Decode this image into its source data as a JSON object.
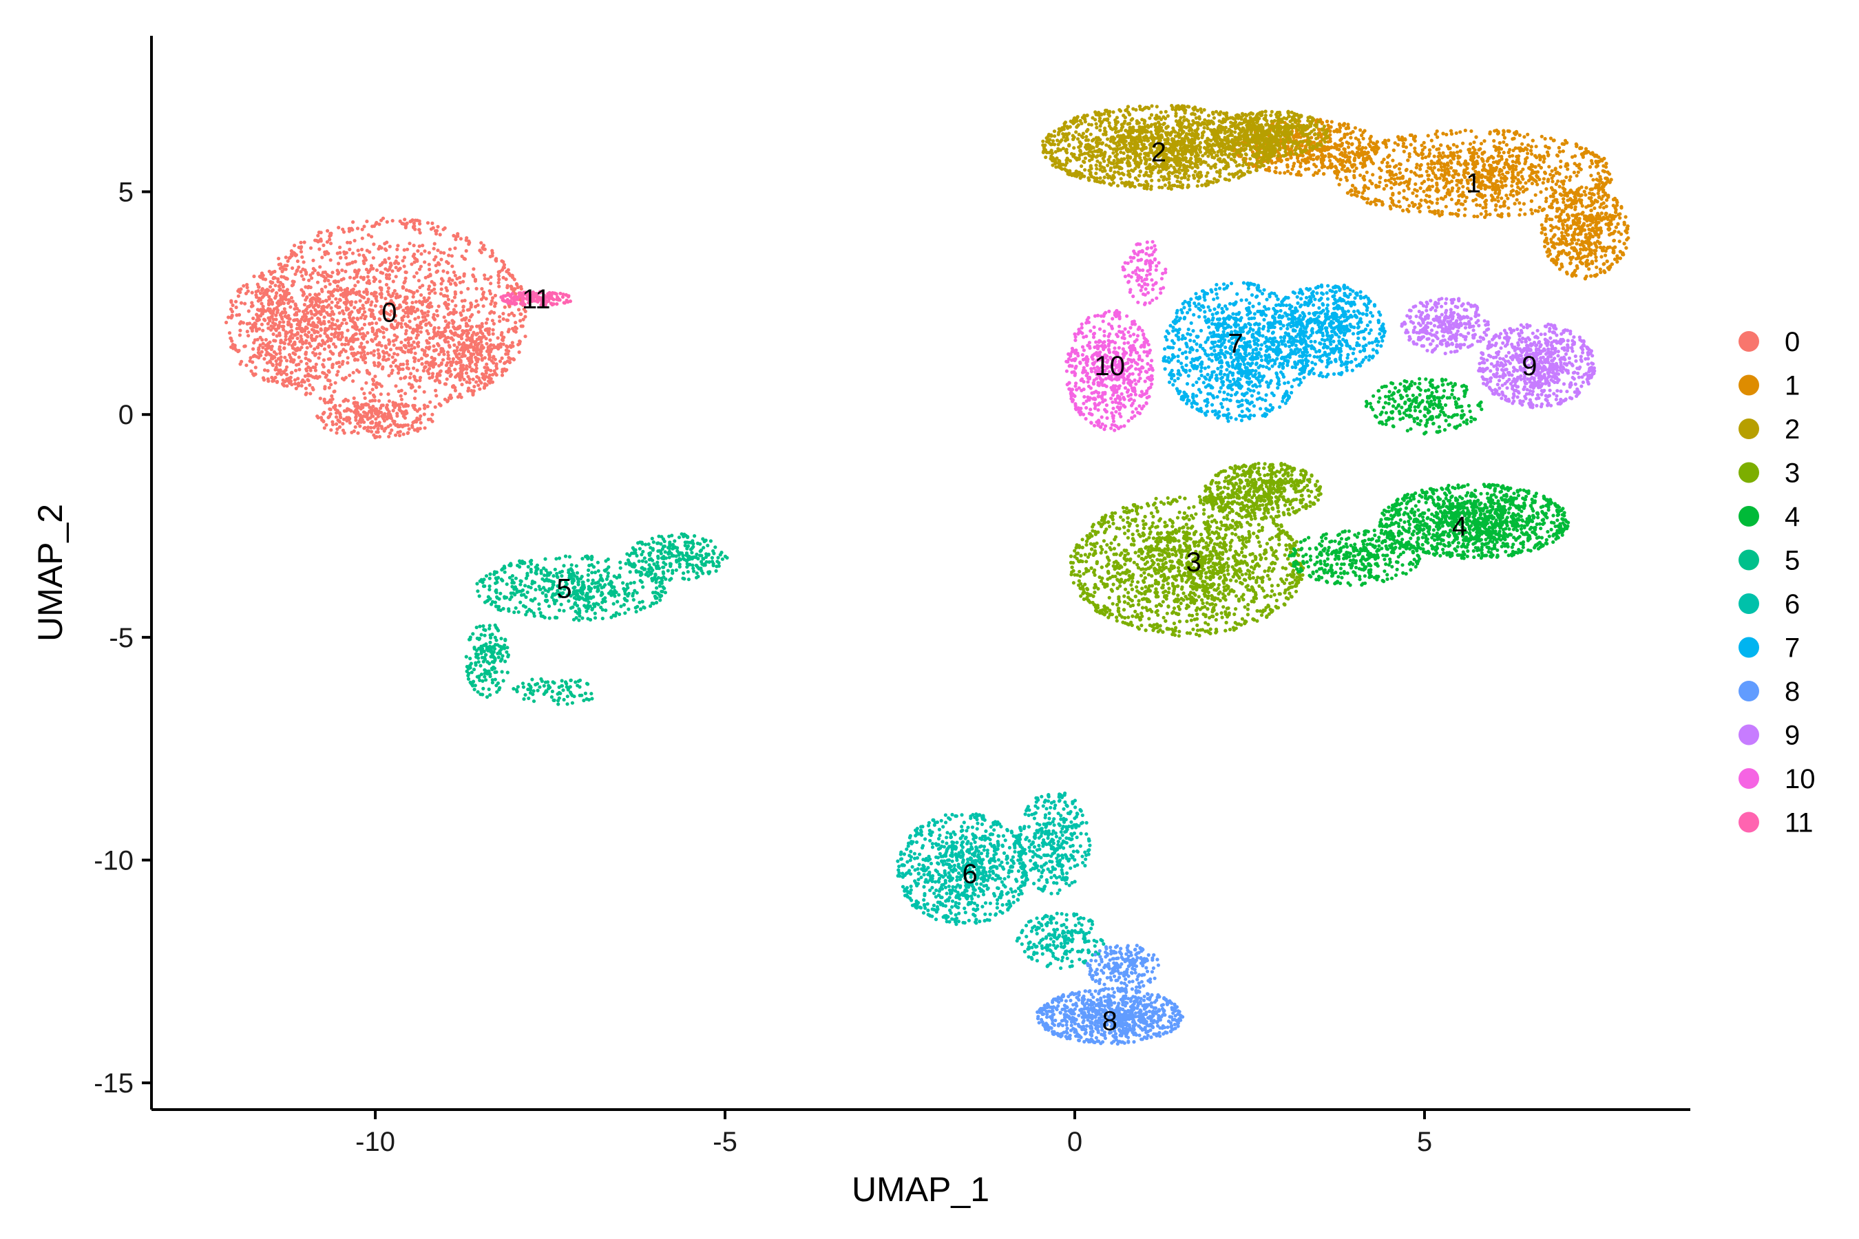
{
  "chart_data": {
    "type": "scatter",
    "xlabel": "UMAP_1",
    "ylabel": "UMAP_2",
    "xlim": [
      -13.2,
      8.8
    ],
    "ylim": [
      -15.6,
      8.5
    ],
    "xticks": [
      -10,
      -5,
      0,
      5
    ],
    "yticks": [
      -15,
      -10,
      -5,
      0,
      5
    ],
    "grid": false,
    "legend_position": "right",
    "clusters": [
      {
        "name": "0",
        "color": "#F8766D",
        "label_x": -9.8,
        "label_y": 2.3,
        "n": 2600,
        "regions": [
          {
            "x": -9.8,
            "y": 2.2,
            "rx": 1.9,
            "ry": 2.1,
            "w": 0.6
          },
          {
            "x": -11.2,
            "y": 2.0,
            "rx": 0.9,
            "ry": 1.3,
            "w": 0.2
          },
          {
            "x": -8.7,
            "y": 1.3,
            "rx": 0.6,
            "ry": 0.7,
            "w": 0.1
          },
          {
            "x": -10.0,
            "y": -0.1,
            "rx": 0.8,
            "ry": 0.4,
            "w": 0.1
          }
        ]
      },
      {
        "name": "1",
        "color": "#DE8C00",
        "label_x": 5.7,
        "label_y": 5.2,
        "n": 2600,
        "regions": [
          {
            "x": 5.7,
            "y": 5.4,
            "rx": 1.9,
            "ry": 0.95,
            "w": 0.5
          },
          {
            "x": 3.3,
            "y": 6.0,
            "rx": 1.0,
            "ry": 0.6,
            "w": 0.25
          },
          {
            "x": 7.3,
            "y": 4.1,
            "rx": 0.6,
            "ry": 1.0,
            "w": 0.25
          }
        ]
      },
      {
        "name": "2",
        "color": "#B79F00",
        "label_x": 1.2,
        "label_y": 5.9,
        "n": 2300,
        "regions": [
          {
            "x": 1.2,
            "y": 6.0,
            "rx": 1.6,
            "ry": 0.9,
            "w": 0.75
          },
          {
            "x": 2.8,
            "y": 6.3,
            "rx": 0.8,
            "ry": 0.5,
            "w": 0.25
          }
        ]
      },
      {
        "name": "3",
        "color": "#7CAE00",
        "label_x": 1.7,
        "label_y": -3.3,
        "n": 2600,
        "regions": [
          {
            "x": 1.6,
            "y": -3.4,
            "rx": 1.6,
            "ry": 1.5,
            "w": 0.75
          },
          {
            "x": 2.7,
            "y": -1.7,
            "rx": 0.8,
            "ry": 0.6,
            "w": 0.25
          }
        ]
      },
      {
        "name": "4",
        "color": "#00BA38",
        "label_x": 5.5,
        "label_y": -2.5,
        "n": 1800,
        "regions": [
          {
            "x": 5.7,
            "y": -2.4,
            "rx": 1.3,
            "ry": 0.8,
            "w": 0.65
          },
          {
            "x": 4.0,
            "y": -3.2,
            "rx": 0.9,
            "ry": 0.6,
            "w": 0.2
          },
          {
            "x": 5.0,
            "y": 0.2,
            "rx": 0.8,
            "ry": 0.6,
            "w": 0.15
          }
        ]
      },
      {
        "name": "5",
        "color": "#00C08B",
        "label_x": -7.3,
        "label_y": -3.9,
        "n": 1000,
        "regions": [
          {
            "x": -7.2,
            "y": -3.9,
            "rx": 1.3,
            "ry": 0.7,
            "w": 0.5
          },
          {
            "x": -5.7,
            "y": -3.2,
            "rx": 0.7,
            "ry": 0.5,
            "w": 0.25
          },
          {
            "x": -8.4,
            "y": -5.5,
            "rx": 0.3,
            "ry": 0.8,
            "w": 0.15
          },
          {
            "x": -7.4,
            "y": -6.2,
            "rx": 0.6,
            "ry": 0.3,
            "w": 0.1
          }
        ]
      },
      {
        "name": "6",
        "color": "#00C1AA",
        "label_x": -1.5,
        "label_y": -10.3,
        "n": 1300,
        "regions": [
          {
            "x": -1.6,
            "y": -10.2,
            "rx": 0.9,
            "ry": 1.2,
            "w": 0.6
          },
          {
            "x": -0.3,
            "y": -9.6,
            "rx": 0.5,
            "ry": 1.1,
            "w": 0.25
          },
          {
            "x": -0.2,
            "y": -11.8,
            "rx": 0.6,
            "ry": 0.6,
            "w": 0.15
          }
        ]
      },
      {
        "name": "7",
        "color": "#00B4F0",
        "label_x": 2.3,
        "label_y": 1.6,
        "n": 1600,
        "regions": [
          {
            "x": 2.3,
            "y": 1.4,
            "rx": 1.0,
            "ry": 1.5,
            "w": 0.6
          },
          {
            "x": 3.6,
            "y": 1.9,
            "rx": 0.8,
            "ry": 1.0,
            "w": 0.4
          }
        ]
      },
      {
        "name": "8",
        "color": "#619CFF",
        "label_x": 0.5,
        "label_y": -13.6,
        "n": 1000,
        "regions": [
          {
            "x": 0.5,
            "y": -13.5,
            "rx": 1.0,
            "ry": 0.6,
            "w": 0.8
          },
          {
            "x": 0.7,
            "y": -12.4,
            "rx": 0.5,
            "ry": 0.5,
            "w": 0.2
          }
        ]
      },
      {
        "name": "9",
        "color": "#C77CFF",
        "label_x": 6.5,
        "label_y": 1.1,
        "n": 1000,
        "regions": [
          {
            "x": 6.6,
            "y": 1.1,
            "rx": 0.8,
            "ry": 0.9,
            "w": 0.7
          },
          {
            "x": 5.3,
            "y": 2.0,
            "rx": 0.6,
            "ry": 0.6,
            "w": 0.3
          }
        ]
      },
      {
        "name": "10",
        "color": "#F564E3",
        "label_x": 0.5,
        "label_y": 1.1,
        "n": 700,
        "regions": [
          {
            "x": 0.5,
            "y": 1.0,
            "rx": 0.6,
            "ry": 1.3,
            "w": 0.85
          },
          {
            "x": 1.0,
            "y": 3.2,
            "rx": 0.3,
            "ry": 0.7,
            "w": 0.15
          }
        ]
      },
      {
        "name": "11",
        "color": "#FF64B0",
        "label_x": -7.7,
        "label_y": 2.6,
        "n": 170,
        "regions": [
          {
            "x": -7.7,
            "y": 2.6,
            "rx": 0.5,
            "ry": 0.15,
            "w": 1.0
          }
        ]
      }
    ]
  }
}
